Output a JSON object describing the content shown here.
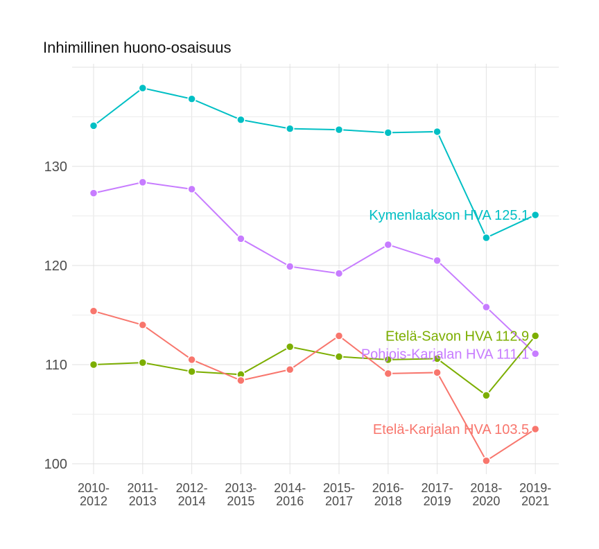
{
  "chart_data": {
    "type": "line",
    "title": "Inhimillinen huono-osaisuus",
    "xlabel": "",
    "ylabel": "",
    "categories": [
      "2010-2012",
      "2011-2013",
      "2012-2014",
      "2013-2015",
      "2014-2016",
      "2015-2017",
      "2016-2018",
      "2017-2019",
      "2018-2020",
      "2019-2021"
    ],
    "category_lines": [
      [
        "2010-",
        "2012"
      ],
      [
        "2011-",
        "2013"
      ],
      [
        "2012-",
        "2014"
      ],
      [
        "2013-",
        "2015"
      ],
      [
        "2014-",
        "2016"
      ],
      [
        "2015-",
        "2017"
      ],
      [
        "2016-",
        "2018"
      ],
      [
        "2017-",
        "2019"
      ],
      [
        "2018-",
        "2020"
      ],
      [
        "2019-",
        "2021"
      ]
    ],
    "ylim": [
      99,
      140
    ],
    "yticks": [
      100,
      110,
      120,
      130
    ],
    "grid": true,
    "series": [
      {
        "name": "Kymenlaakson HVA",
        "label": "Kymenlaakson HVA 125.1",
        "color": "#00BFC4",
        "values": [
          134.1,
          137.9,
          136.8,
          134.7,
          133.8,
          133.7,
          133.4,
          133.5,
          122.8,
          125.1
        ]
      },
      {
        "name": "Pohjois-Karjalan HVA",
        "label": "Pohjois-Karjalan HVA 111.1",
        "color": "#C77CFF",
        "values": [
          127.3,
          128.4,
          127.7,
          122.7,
          119.9,
          119.2,
          122.1,
          120.5,
          115.8,
          111.1
        ]
      },
      {
        "name": "Etelä-Savon HVA",
        "label": "Etelä-Savon HVA 112.9",
        "color": "#7CAE00",
        "values": [
          110.0,
          110.2,
          109.3,
          109.0,
          111.8,
          110.8,
          110.5,
          110.6,
          106.9,
          112.9
        ]
      },
      {
        "name": "Etelä-Karjalan HVA",
        "label": "Etelä-Karjalan HVA 103.5",
        "color": "#F8766D",
        "values": [
          115.4,
          114.0,
          110.5,
          108.4,
          109.5,
          112.9,
          109.1,
          109.2,
          100.3,
          103.5
        ]
      }
    ]
  }
}
